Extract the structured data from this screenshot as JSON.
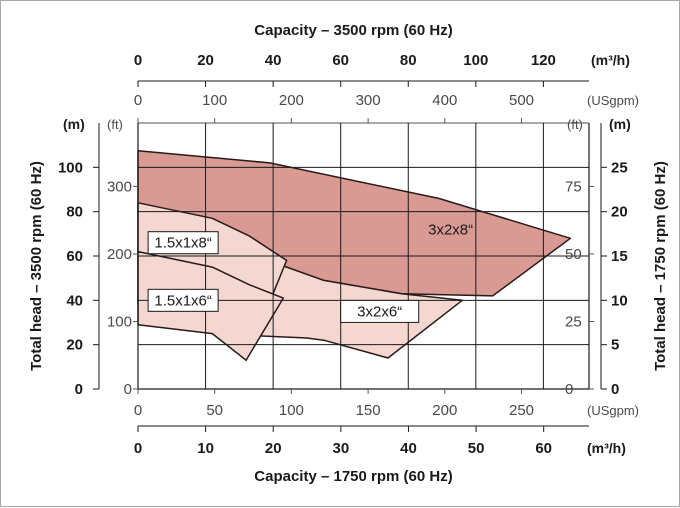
{
  "chart_data": {
    "type": "area",
    "title": "",
    "axes": {
      "top_primary": {
        "label": "Capacity – 3500 rpm (60 Hz)",
        "unit": "(m³/h)",
        "ticks": [
          "0",
          "20",
          "40",
          "60",
          "80",
          "100",
          "120"
        ],
        "range": [
          0,
          133.5
        ]
      },
      "top_secondary": {
        "unit": "(USgpm)",
        "ticks": [
          "0",
          "100",
          "200",
          "300",
          "400",
          "500"
        ],
        "range": [
          0,
          588
        ]
      },
      "bottom_primary": {
        "unit": "(USgpm)",
        "ticks": [
          "0",
          "50",
          "100",
          "150",
          "200",
          "250"
        ],
        "range": [
          0,
          294
        ]
      },
      "bottom_secondary": {
        "label": "Capacity – 1750 rpm (60 Hz)",
        "unit": "(m³/h)",
        "ticks": [
          "0",
          "10",
          "20",
          "30",
          "40",
          "50",
          "60"
        ],
        "range": [
          0,
          66.7
        ]
      },
      "left_primary": {
        "label": "Total head – 3500 rpm (60 Hz)",
        "unit": "(m)",
        "ticks": [
          "0",
          "20",
          "40",
          "60",
          "80",
          "100"
        ],
        "range": [
          0,
          120
        ]
      },
      "left_secondary": {
        "unit": "(ft)",
        "ticks": [
          "0",
          "100",
          "200",
          "300"
        ],
        "range": [
          0,
          394
        ]
      },
      "right_primary": {
        "label": "Total head – 1750 rpm (60 Hz)",
        "unit": "(m)",
        "ticks": [
          "0",
          "5",
          "10",
          "15",
          "20",
          "25"
        ],
        "range": [
          0,
          30
        ]
      },
      "right_secondary": {
        "unit": "(ft)",
        "ticks": [
          "0",
          "25",
          "50",
          "75"
        ],
        "range": [
          0,
          98.5
        ]
      }
    },
    "grid": true,
    "series": [
      {
        "name": "3x2x8“",
        "color": "#d89a92",
        "stroke": "#2a1a1a",
        "points_3500": [
          [
            0,
            107.5
          ],
          [
            39,
            102
          ],
          [
            89,
            86
          ],
          [
            128,
            68
          ],
          [
            105,
            42
          ],
          [
            78,
            43
          ],
          [
            55,
            49
          ],
          [
            33,
            61
          ],
          [
            0,
            62
          ]
        ]
      },
      {
        "name": "3x2x6“",
        "color": "#f3d7d0",
        "stroke": "#2a1a1a",
        "points_3500": [
          [
            0,
            62
          ],
          [
            33,
            61
          ],
          [
            55,
            49
          ],
          [
            78,
            43
          ],
          [
            96,
            40
          ],
          [
            74,
            14
          ],
          [
            55,
            22
          ],
          [
            50,
            23
          ],
          [
            35,
            24
          ]
        ]
      },
      {
        "name": "1.5x1x8“",
        "color": "#f3d7d0",
        "stroke": "#2a1a1a",
        "points_3500": [
          [
            0,
            84
          ],
          [
            22,
            77
          ],
          [
            33,
            69
          ],
          [
            44,
            58
          ],
          [
            32,
            13
          ],
          [
            22,
            32
          ],
          [
            0,
            38
          ]
        ]
      },
      {
        "name": "1.5x1x6“",
        "color": "#f3d7d0",
        "stroke": "#2a1a1a",
        "points_3500": [
          [
            0,
            62
          ],
          [
            22,
            55
          ],
          [
            33,
            47
          ],
          [
            43,
            41
          ],
          [
            32,
            13
          ],
          [
            22,
            25
          ],
          [
            0,
            29
          ]
        ]
      }
    ],
    "legend": "none"
  }
}
